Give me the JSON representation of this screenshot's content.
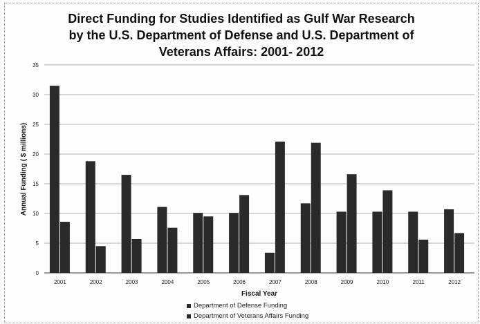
{
  "chart_data": {
    "type": "bar",
    "title_lines": [
      "Direct Funding for Studies Identified as Gulf War Research",
      "by the U.S. Department of Defense and U.S. Department of",
      "Veterans Affairs: 2001- 2012"
    ],
    "xlabel": "Fiscal Year",
    "ylabel": "Annual Funding ( $ millions)",
    "ylim": [
      0,
      35
    ],
    "yticks": [
      0,
      5,
      10,
      15,
      20,
      25,
      30,
      35
    ],
    "grid": true,
    "legend_position": "bottom",
    "categories": [
      "2001",
      "2002",
      "2003",
      "2004",
      "2005",
      "2006",
      "2007",
      "2008",
      "2009",
      "2010",
      "2011",
      "2012"
    ],
    "series": [
      {
        "name": "Department of Defense Funding",
        "color": "#2a2a2a",
        "values": [
          31.5,
          18.8,
          16.5,
          11.1,
          10.1,
          10.1,
          3.4,
          11.7,
          10.3,
          10.3,
          10.3,
          10.7
        ]
      },
      {
        "name": "Department of Veterans Affairs Funding",
        "color": "#2a2a2a",
        "values": [
          8.6,
          4.5,
          5.7,
          7.6,
          9.5,
          13.1,
          22.1,
          21.9,
          16.6,
          13.9,
          5.6,
          6.7
        ]
      }
    ]
  }
}
